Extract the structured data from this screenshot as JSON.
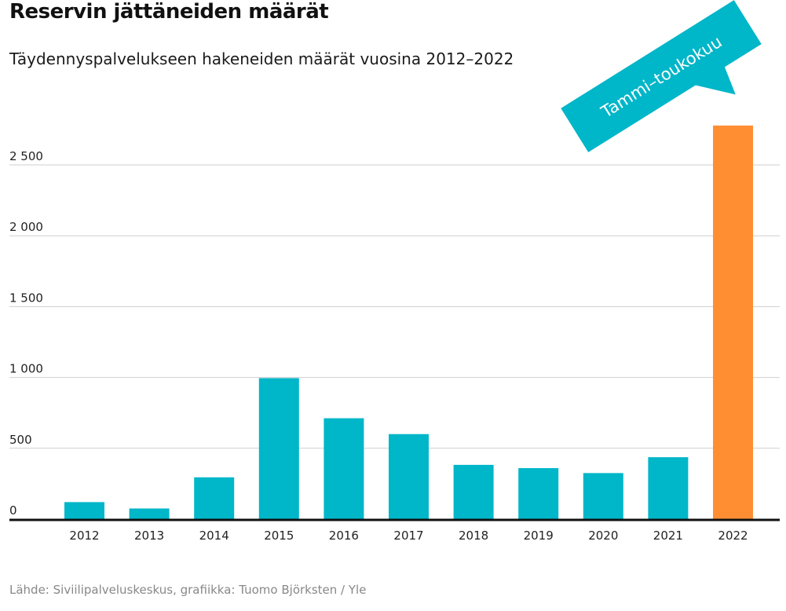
{
  "chart_data": {
    "type": "bar",
    "title": "Reservin jättäneiden määrät",
    "subtitle": "Täydennyspalvelukseen hakeneiden määrät vuosina 2012–2022",
    "categories": [
      "2012",
      "2013",
      "2014",
      "2015",
      "2016",
      "2017",
      "2018",
      "2019",
      "2020",
      "2021",
      "2022"
    ],
    "values": [
      120,
      75,
      295,
      995,
      712,
      600,
      383,
      360,
      325,
      437,
      2778
    ],
    "ylim": [
      0,
      2800
    ],
    "yticks": [
      0,
      500,
      1000,
      1500,
      2000,
      2500
    ],
    "ytick_labels": [
      "0",
      "500",
      "1 000",
      "1 500",
      "2 000",
      "2 500"
    ],
    "xlabel": "",
    "ylabel": "",
    "grid": true,
    "highlight_index": 10,
    "annotation": {
      "text": "Tammi–toukokuu",
      "target": "2022"
    },
    "source": "Lähde: Siviilipalveluskeskus, grafiikka: Tuomo Björksten / Yle"
  },
  "colors": {
    "bar": "#00b6c9",
    "highlight": "#ff8e33",
    "annotation": "#00b6c9"
  }
}
